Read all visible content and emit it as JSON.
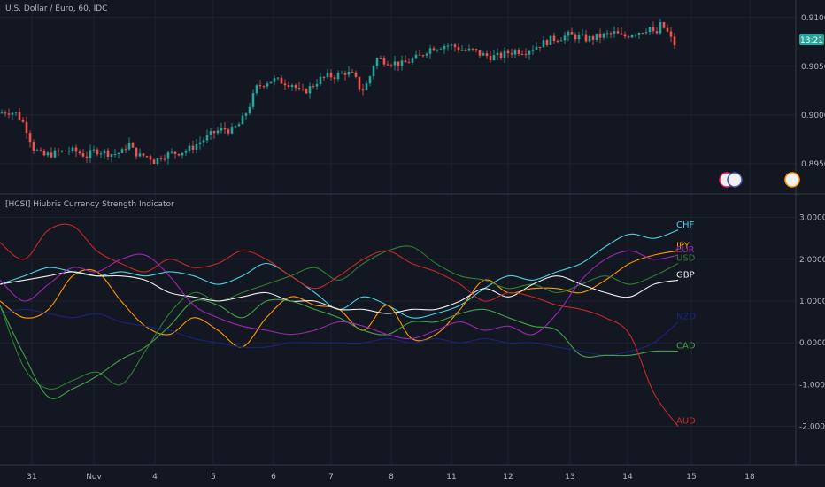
{
  "header": {
    "symbol_title": "U.S. Dollar / Euro, 60, IDC",
    "indicator_title": "[HCSI] Hiubris Currency Strength Indicator"
  },
  "price_badge": "13:21",
  "colors": {
    "background": "#131722",
    "up": "#26a69a",
    "down": "#ef5350",
    "grid": "#2a2e39",
    "badge": "#26a69a"
  },
  "chart_data": [
    {
      "type": "candlestick",
      "title": "U.S. Dollar / Euro, 60, IDC",
      "y_ticks": [
        "0.9100",
        "0.9050",
        "0.9000",
        "0.8950"
      ],
      "ylim": [
        0.892,
        0.9118
      ],
      "close_path": [
        [
          0,
          0.9002
        ],
        [
          8,
          0.9004
        ],
        [
          18,
          0.9002
        ],
        [
          28,
          0.899
        ],
        [
          38,
          0.8966
        ],
        [
          48,
          0.8958
        ],
        [
          58,
          0.896
        ],
        [
          68,
          0.8962
        ],
        [
          78,
          0.8964
        ],
        [
          88,
          0.8962
        ],
        [
          98,
          0.8958
        ],
        [
          108,
          0.8964
        ],
        [
          118,
          0.8962
        ],
        [
          128,
          0.896
        ],
        [
          138,
          0.8962
        ],
        [
          145,
          0.8972
        ],
        [
          150,
          0.8964
        ],
        [
          158,
          0.8958
        ],
        [
          168,
          0.8958
        ],
        [
          175,
          0.8952
        ],
        [
          182,
          0.8958
        ],
        [
          192,
          0.896
        ],
        [
          202,
          0.8962
        ],
        [
          212,
          0.8964
        ],
        [
          222,
          0.897
        ],
        [
          232,
          0.8976
        ],
        [
          242,
          0.8982
        ],
        [
          252,
          0.8986
        ],
        [
          262,
          0.8984
        ],
        [
          272,
          0.8992
        ],
        [
          280,
          0.9006
        ],
        [
          290,
          0.9028
        ],
        [
          300,
          0.9034
        ],
        [
          310,
          0.9036
        ],
        [
          320,
          0.9034
        ],
        [
          330,
          0.9032
        ],
        [
          340,
          0.9022
        ],
        [
          350,
          0.9028
        ],
        [
          360,
          0.9036
        ],
        [
          370,
          0.904
        ],
        [
          380,
          0.904
        ],
        [
          390,
          0.9044
        ],
        [
          400,
          0.904
        ],
        [
          408,
          0.9024
        ],
        [
          416,
          0.9034
        ],
        [
          424,
          0.9058
        ],
        [
          434,
          0.9056
        ],
        [
          444,
          0.9054
        ],
        [
          454,
          0.9052
        ],
        [
          464,
          0.9056
        ],
        [
          474,
          0.906
        ],
        [
          484,
          0.9068
        ],
        [
          494,
          0.907
        ],
        [
          504,
          0.9072
        ],
        [
          514,
          0.907
        ],
        [
          524,
          0.9066
        ],
        [
          534,
          0.9066
        ],
        [
          544,
          0.9062
        ],
        [
          554,
          0.906
        ],
        [
          564,
          0.906
        ],
        [
          574,
          0.9064
        ],
        [
          584,
          0.9066
        ],
        [
          594,
          0.9066
        ],
        [
          604,
          0.907
        ],
        [
          614,
          0.9074
        ],
        [
          624,
          0.9078
        ],
        [
          634,
          0.908
        ],
        [
          644,
          0.9082
        ],
        [
          654,
          0.908
        ],
        [
          664,
          0.9078
        ],
        [
          674,
          0.908
        ],
        [
          684,
          0.9082
        ],
        [
          694,
          0.9084
        ],
        [
          704,
          0.908
        ],
        [
          714,
          0.9084
        ],
        [
          724,
          0.9086
        ],
        [
          734,
          0.909
        ],
        [
          740,
          0.908
        ],
        [
          746,
          0.9092
        ],
        [
          752,
          0.9088
        ],
        [
          758,
          0.9078
        ],
        [
          764,
          0.907
        ]
      ]
    },
    {
      "type": "line",
      "title": "[HCSI] Hiubris Currency Strength Indicator",
      "y_ticks": [
        "3.0000",
        "2.0000",
        "1.0000",
        "0.0000",
        "-1.0000",
        "-2.0000"
      ],
      "ylim": [
        -2.9,
        3.5
      ],
      "x_ticks": [
        "31",
        "Nov",
        "4",
        "5",
        "6",
        "7",
        "8",
        "11",
        "12",
        "13",
        "14",
        "15",
        "18"
      ],
      "series": [
        {
          "name": "CHF",
          "color": "#4dd0e1",
          "values": [
            1.4,
            1.6,
            1.8,
            1.7,
            1.6,
            1.7,
            1.6,
            1.7,
            1.6,
            1.4,
            1.6,
            1.9,
            1.6,
            1.2,
            0.8,
            1.1,
            0.9,
            0.6,
            0.7,
            0.9,
            1.3,
            1.6,
            1.5,
            1.7,
            1.9,
            2.3,
            2.6,
            2.5,
            2.7
          ]
        },
        {
          "name": "JPY",
          "color": "#ff9800",
          "values": [
            1.0,
            0.6,
            0.8,
            1.6,
            1.7,
            1.0,
            0.4,
            0.2,
            0.6,
            0.3,
            -0.1,
            0.6,
            1.1,
            0.9,
            0.8,
            0.3,
            0.9,
            0.1,
            0.2,
            0.8,
            1.5,
            1.2,
            1.3,
            1.3,
            1.2,
            1.5,
            1.9,
            2.1,
            2.2
          ]
        },
        {
          "name": "USD",
          "color": "#2e7d32",
          "values": [
            0.9,
            -0.6,
            -1.1,
            -0.9,
            -0.7,
            -1.0,
            -0.2,
            0.7,
            1.2,
            1.0,
            1.2,
            1.4,
            1.6,
            1.8,
            1.5,
            1.9,
            2.2,
            2.3,
            1.9,
            1.6,
            1.5,
            1.3,
            1.4,
            1.2,
            1.4,
            1.6,
            1.4,
            1.6,
            1.9
          ]
        },
        {
          "name": "GBP",
          "color": "#f0f0f0",
          "values": [
            1.4,
            1.5,
            1.6,
            1.7,
            1.6,
            1.6,
            1.5,
            1.2,
            1.1,
            1.0,
            1.1,
            1.2,
            1.0,
            1.0,
            0.8,
            0.8,
            0.7,
            0.8,
            0.8,
            1.0,
            1.3,
            1.1,
            1.4,
            1.6,
            1.4,
            1.2,
            1.1,
            1.4,
            1.5
          ]
        },
        {
          "name": "NZD",
          "color": "#1a237e",
          "values": [
            0.7,
            0.8,
            0.7,
            0.6,
            0.7,
            0.5,
            0.4,
            0.3,
            0.1,
            0.0,
            -0.1,
            -0.1,
            0.0,
            0.0,
            0.0,
            0.0,
            0.1,
            0.0,
            0.1,
            0.0,
            0.1,
            0.0,
            0.0,
            -0.1,
            -0.2,
            -0.3,
            -0.2,
            0.0,
            0.5
          ]
        },
        {
          "name": "CAD",
          "color": "#43a047",
          "values": [
            0.9,
            -0.3,
            -1.3,
            -1.1,
            -0.8,
            -0.4,
            -0.1,
            0.4,
            1.0,
            0.9,
            0.6,
            1.0,
            1.0,
            0.8,
            0.6,
            0.3,
            0.2,
            0.5,
            0.5,
            0.7,
            0.8,
            0.6,
            0.4,
            0.3,
            -0.3,
            -0.3,
            -0.3,
            -0.2,
            -0.2
          ]
        },
        {
          "name": "AUD",
          "color": "#c62828",
          "values": [
            2.4,
            2.0,
            2.7,
            2.8,
            2.2,
            1.9,
            1.7,
            2.0,
            1.8,
            1.9,
            2.2,
            2.0,
            1.6,
            1.3,
            1.6,
            2.0,
            2.2,
            1.9,
            1.7,
            1.4,
            1.0,
            1.2,
            1.1,
            0.9,
            0.8,
            0.6,
            0.2,
            -1.2,
            -2.0
          ]
        },
        {
          "name": "EUR",
          "color": "#9c27b0",
          "values": [
            1.5,
            1.0,
            1.4,
            1.8,
            1.7,
            2.0,
            2.1,
            1.6,
            0.9,
            0.6,
            0.4,
            0.3,
            0.2,
            0.3,
            0.5,
            0.4,
            0.2,
            0.1,
            0.3,
            0.5,
            0.3,
            0.4,
            0.2,
            0.7,
            1.5,
            2.0,
            2.2,
            2.0,
            2.1
          ]
        }
      ]
    }
  ]
}
